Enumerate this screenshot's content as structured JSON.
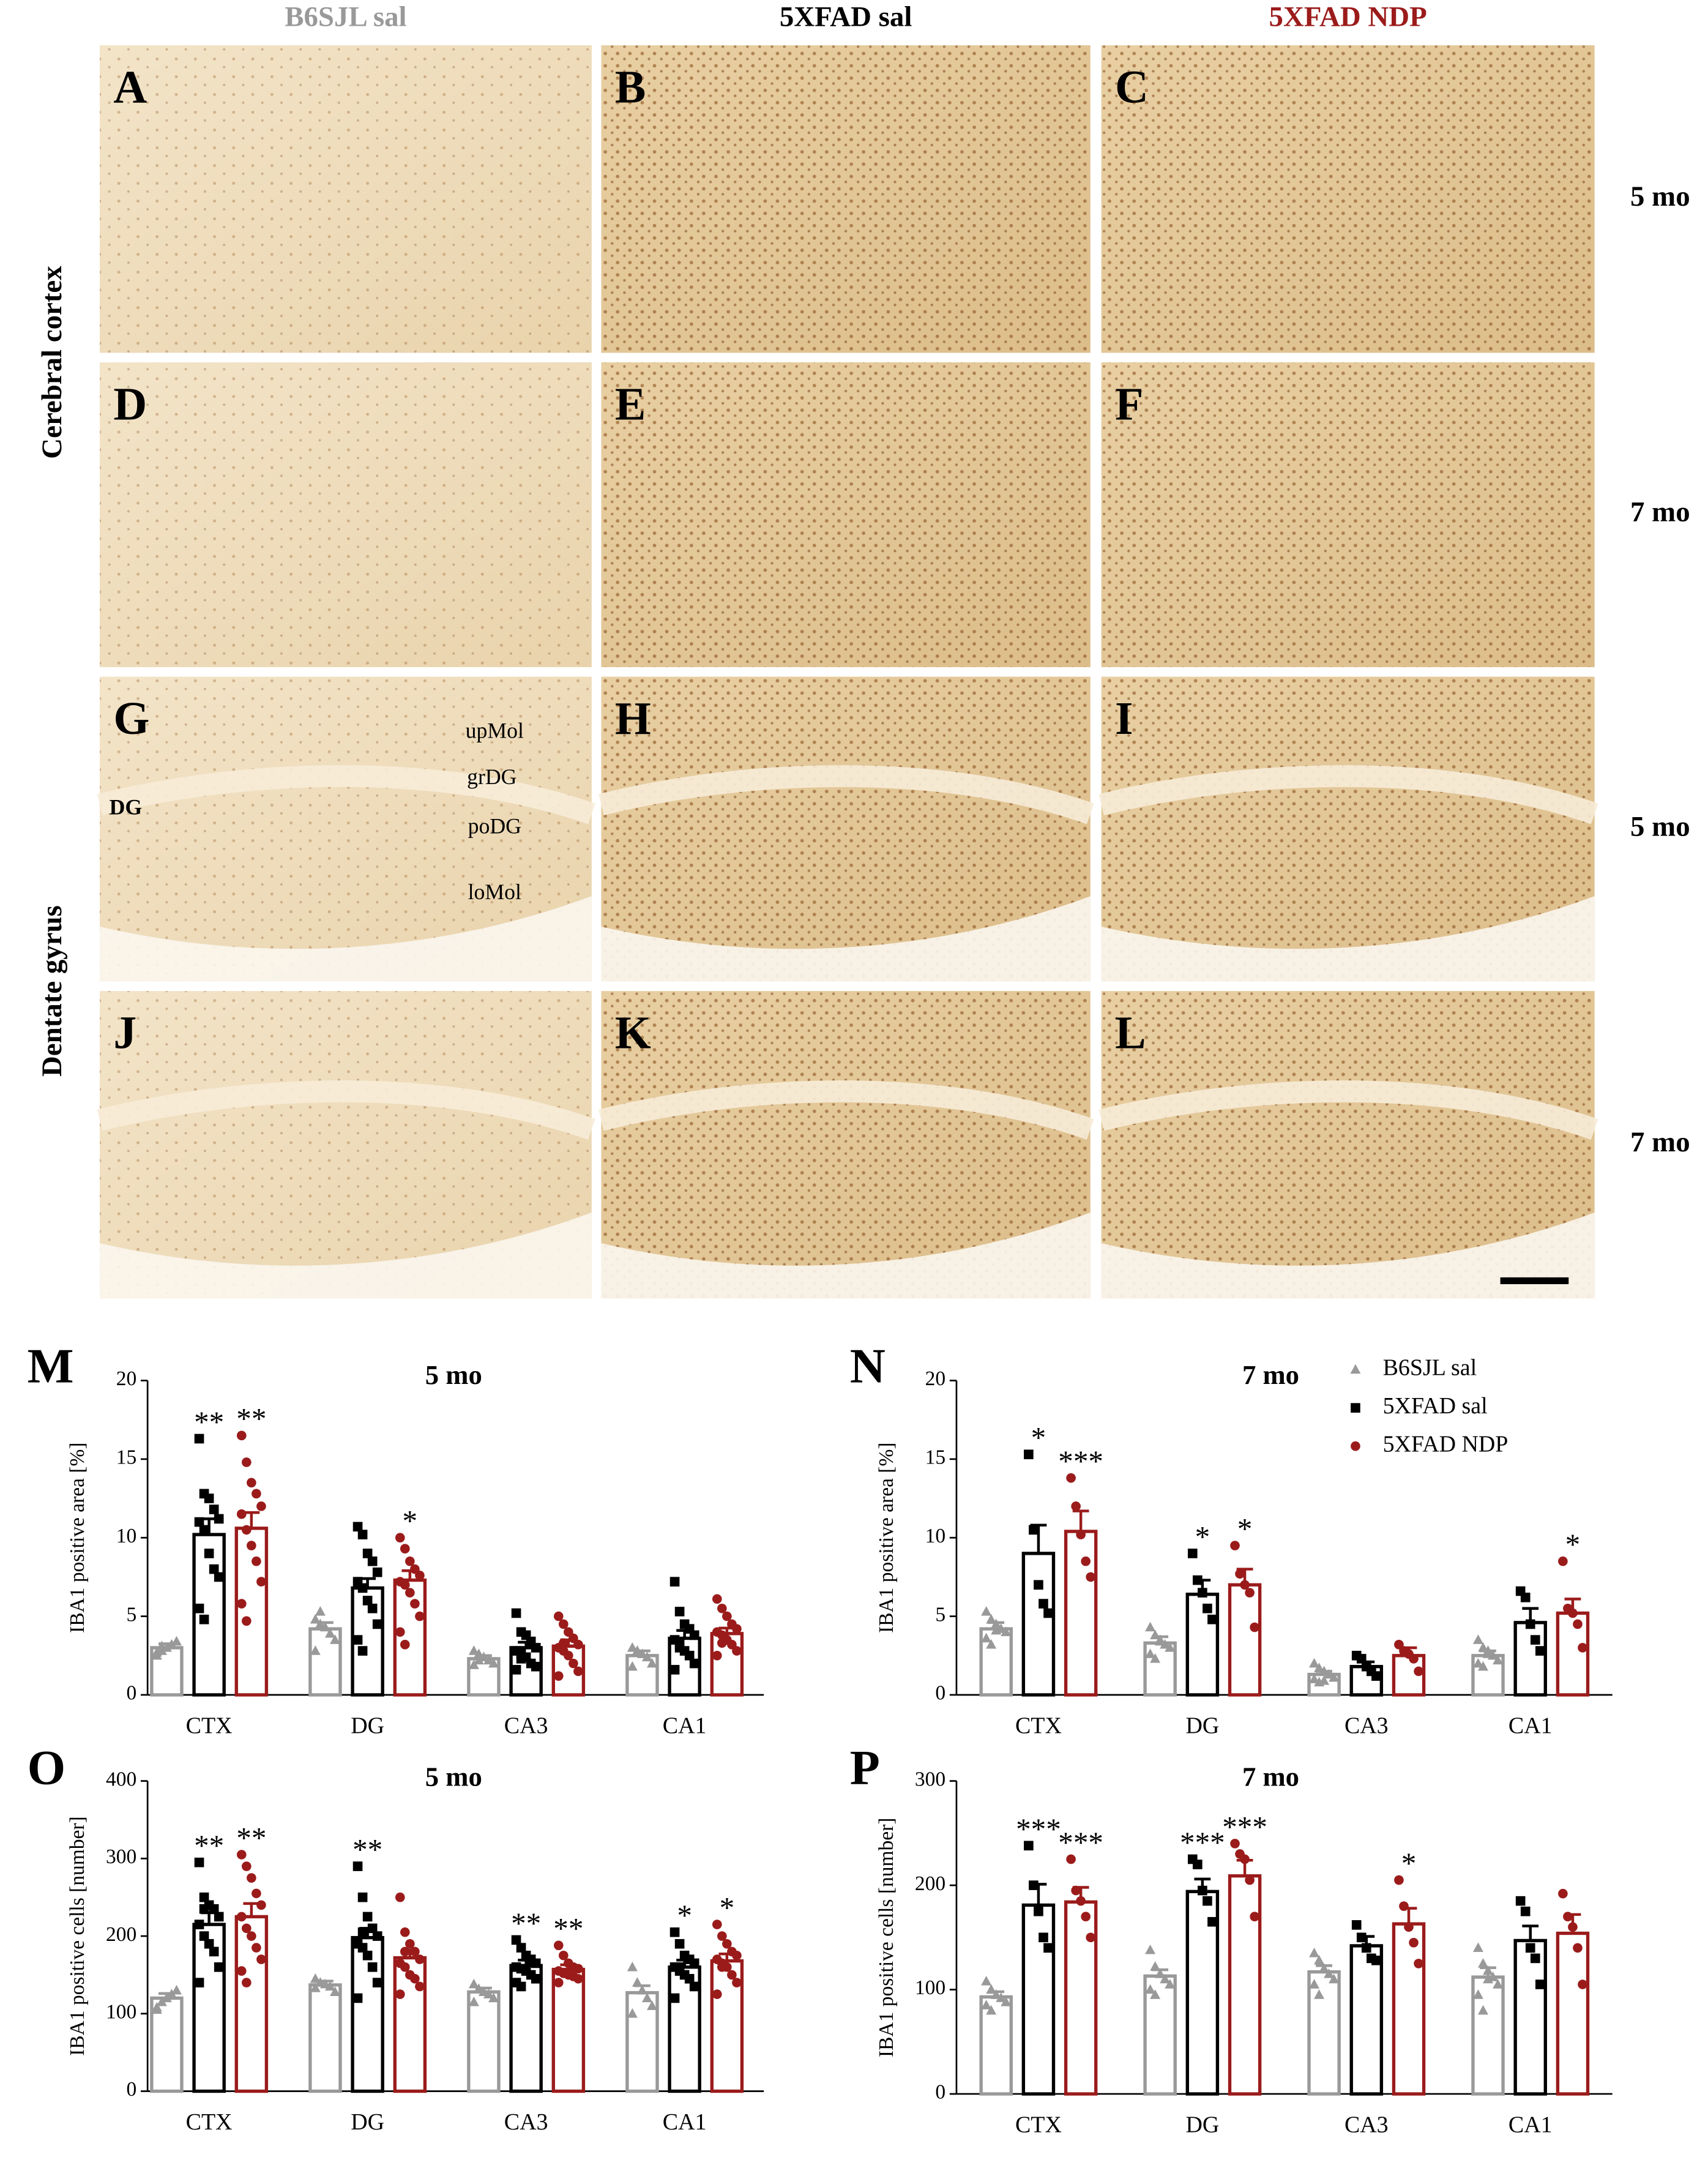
{
  "figure": {
    "columns": [
      "B6SJL sal",
      "5XFAD sal",
      "5XFAD NDP"
    ],
    "column_colors": [
      "#999999",
      "#000000",
      "#9b1b1b"
    ],
    "rows": [
      "5 mo",
      "7 mo",
      "5 mo",
      "7 mo"
    ],
    "regions": [
      "Cerebral cortex",
      "Dentate gyrus"
    ],
    "panels": [
      "A",
      "B",
      "C",
      "D",
      "E",
      "F",
      "G",
      "H",
      "I",
      "J",
      "K",
      "L"
    ],
    "layer_labels": [
      "upMol",
      "grDG",
      "poDG",
      "loMol"
    ],
    "region_label": "DG"
  },
  "chart_data": [
    {
      "type": "bar",
      "panel": "M",
      "title": "5 mo",
      "ylabel": "IBA1 positive area [%]",
      "categories": [
        "CTX",
        "DG",
        "CA3",
        "CA1"
      ],
      "ylim": [
        0,
        20
      ],
      "yticks": [
        0,
        5,
        10,
        15,
        20
      ],
      "legend": false,
      "series": [
        {
          "color": "#999999",
          "marker": "triangle",
          "values": [
            3.0,
            4.2,
            2.3,
            2.5
          ],
          "errors": [
            0.25,
            0.4,
            0.2,
            0.3
          ],
          "points": [
            [
              2.5,
              2.8,
              3.0,
              3.2,
              3.4,
              2.7,
              3.1
            ],
            [
              4.8,
              4.5,
              4.3,
              3.9,
              3.5,
              2.8,
              5.3
            ],
            [
              2.8,
              2.6,
              2.4,
              2.2,
              2.0,
              1.9,
              2.2
            ],
            [
              3.0,
              2.8,
              2.6,
              2.4,
              2.0,
              1.8,
              2.8
            ]
          ],
          "stars": [
            null,
            null,
            null,
            null
          ]
        },
        {
          "color": "#000000",
          "marker": "square",
          "values": [
            10.2,
            6.8,
            3.0,
            3.6
          ],
          "errors": [
            1.0,
            0.6,
            0.35,
            0.5
          ],
          "points": [
            [
              16.3,
              12.8,
              12.5,
              11.8,
              11.2,
              11.0,
              10.5,
              9.0,
              8.0,
              7.5,
              5.5,
              4.8
            ],
            [
              10.7,
              10.2,
              9.0,
              8.5,
              7.8,
              7.2,
              6.8,
              6.0,
              5.5,
              4.5,
              3.5,
              2.8
            ],
            [
              5.2,
              4.0,
              3.8,
              3.4,
              3.0,
              2.8,
              2.6,
              2.4,
              2.0,
              1.8,
              1.6,
              2.3
            ],
            [
              7.2,
              5.3,
              4.5,
              4.2,
              3.8,
              3.5,
              3.2,
              2.8,
              2.5,
              2.0,
              1.6,
              3.0
            ]
          ],
          "stars": [
            "**",
            null,
            null,
            null
          ]
        },
        {
          "color": "#9b1b1b",
          "marker": "circle",
          "values": [
            10.6,
            7.3,
            3.1,
            3.9
          ],
          "errors": [
            1.0,
            0.6,
            0.4,
            0.35
          ],
          "points": [
            [
              16.5,
              14.8,
              13.5,
              12.8,
              12.0,
              11.5,
              10.5,
              9.5,
              8.5,
              7.2,
              5.8,
              4.7
            ],
            [
              10.0,
              9.3,
              8.5,
              8.0,
              7.6,
              7.2,
              7.0,
              6.5,
              5.8,
              5.0,
              4.0,
              3.2
            ],
            [
              5.0,
              4.5,
              4.0,
              3.6,
              3.2,
              3.0,
              2.8,
              2.5,
              2.0,
              1.5,
              1.2,
              3.3
            ],
            [
              6.1,
              5.5,
              5.0,
              4.5,
              4.2,
              4.0,
              3.8,
              3.5,
              3.2,
              2.8,
              2.5,
              3.3
            ]
          ],
          "stars": [
            "**",
            "*",
            null,
            null
          ]
        }
      ]
    },
    {
      "type": "bar",
      "panel": "N",
      "title": "7 mo",
      "ylabel": "IBA1 positive area [%]",
      "categories": [
        "CTX",
        "DG",
        "CA3",
        "CA1"
      ],
      "ylim": [
        0,
        20
      ],
      "yticks": [
        0,
        5,
        10,
        15,
        20
      ],
      "legend": true,
      "series": [
        {
          "name": "B6SJL sal",
          "color": "#999999",
          "marker": "triangle",
          "values": [
            4.2,
            3.3,
            1.3,
            2.5
          ],
          "errors": [
            0.4,
            0.4,
            0.2,
            0.3
          ],
          "points": [
            [
              5.3,
              4.8,
              4.5,
              4.2,
              4.0,
              3.6,
              3.2,
              4.1
            ],
            [
              4.3,
              3.8,
              3.5,
              3.2,
              3.0,
              2.6,
              2.3,
              3.4
            ],
            [
              2.0,
              1.7,
              1.5,
              1.3,
              1.1,
              1.0,
              0.8,
              0.9
            ],
            [
              3.5,
              3.0,
              2.8,
              2.5,
              2.2,
              2.0,
              1.8,
              2.6
            ]
          ],
          "stars": [
            null,
            null,
            null,
            null
          ]
        },
        {
          "name": "5XFAD sal",
          "color": "#000000",
          "marker": "square",
          "values": [
            9.0,
            6.4,
            1.8,
            4.6
          ],
          "errors": [
            1.8,
            0.9,
            0.3,
            0.9
          ],
          "points": [
            [
              15.3,
              10.5,
              7.0,
              5.8,
              5.2
            ],
            [
              9.0,
              7.3,
              6.5,
              5.5,
              4.8
            ],
            [
              2.5,
              2.3,
              1.8,
              1.5,
              1.2
            ],
            [
              6.6,
              6.2,
              4.5,
              3.5,
              2.8
            ]
          ],
          "stars": [
            "*",
            "*",
            null,
            null
          ]
        },
        {
          "name": "5XFAD NDP",
          "color": "#9b1b1b",
          "marker": "circle",
          "values": [
            10.4,
            7.0,
            2.5,
            5.2
          ],
          "errors": [
            1.3,
            1.0,
            0.5,
            0.9
          ],
          "points": [
            [
              13.8,
              12.0,
              10.2,
              8.5,
              7.5
            ],
            [
              9.5,
              7.7,
              7.0,
              6.5,
              4.3
            ],
            [
              3.2,
              2.8,
              2.6,
              2.3,
              1.5
            ],
            [
              8.5,
              5.5,
              5.2,
              4.5,
              3.0
            ]
          ],
          "stars": [
            "***",
            "*",
            null,
            "*"
          ]
        }
      ]
    },
    {
      "type": "bar",
      "panel": "O",
      "title": "5 mo",
      "ylabel": "IBA1 positive cells [number]",
      "categories": [
        "CTX",
        "DG",
        "CA3",
        "CA1"
      ],
      "ylim": [
        0,
        400
      ],
      "yticks": [
        0,
        100,
        200,
        300,
        400
      ],
      "legend": false,
      "series": [
        {
          "color": "#999999",
          "marker": "triangle",
          "values": [
            120,
            137,
            128,
            127
          ],
          "errors": [
            6,
            5,
            5,
            9
          ],
          "points": [
            [
              108,
              115,
              120,
              125,
              130,
              105
            ],
            [
              145,
              140,
              138,
              135,
              128,
              133
            ],
            [
              138,
              132,
              128,
              125,
              120,
              115
            ],
            [
              160,
              140,
              130,
              120,
              110,
              100
            ]
          ],
          "stars": [
            null,
            null,
            null,
            null
          ]
        },
        {
          "color": "#000000",
          "marker": "square",
          "values": [
            215,
            198,
            162,
            160
          ],
          "errors": [
            15,
            12,
            7,
            9
          ],
          "points": [
            [
              295,
              250,
              240,
              235,
              225,
              215,
              200,
              190,
              180,
              160,
              140,
              235
            ],
            [
              290,
              250,
              225,
              210,
              200,
              190,
              185,
              175,
              160,
              140,
              120,
              205
            ],
            [
              195,
              185,
              175,
              170,
              165,
              160,
              158,
              155,
              150,
              145,
              140,
              135
            ],
            [
              205,
              190,
              175,
              170,
              165,
              160,
              155,
              150,
              145,
              135,
              120,
              160
            ]
          ],
          "stars": [
            "**",
            "**",
            "**",
            "*"
          ]
        },
        {
          "color": "#9b1b1b",
          "marker": "circle",
          "values": [
            225,
            172,
            157,
            168
          ],
          "errors": [
            17,
            10,
            6,
            9
          ],
          "points": [
            [
              305,
              290,
              275,
              255,
              240,
              225,
              210,
              200,
              185,
              170,
              155,
              140
            ],
            [
              250,
              205,
              190,
              180,
              170,
              165,
              160,
              150,
              145,
              135,
              125,
              180
            ],
            [
              188,
              175,
              165,
              160,
              158,
              155,
              152,
              150,
              148,
              145,
              140,
              153
            ],
            [
              215,
              200,
              190,
              180,
              175,
              170,
              165,
              160,
              150,
              140,
              125,
              160
            ]
          ],
          "stars": [
            "**",
            null,
            "**",
            "*"
          ]
        }
      ]
    },
    {
      "type": "bar",
      "panel": "P",
      "title": "7 mo",
      "ylabel": "IBA1 positive cells [number]",
      "categories": [
        "CTX",
        "DG",
        "CA3",
        "CA1"
      ],
      "ylim": [
        0,
        300
      ],
      "yticks": [
        0,
        100,
        200,
        300
      ],
      "legend": false,
      "series": [
        {
          "color": "#999999",
          "marker": "triangle",
          "values": [
            93,
            113,
            117,
            112
          ],
          "errors": [
            5,
            6,
            6,
            9
          ],
          "points": [
            [
              108,
              100,
              95,
              92,
              88,
              85,
              80,
              95
            ],
            [
              138,
              122,
              115,
              110,
              105,
              100,
              95,
              115
            ],
            [
              135,
              128,
              120,
              115,
              110,
              105,
              95,
              120
            ],
            [
              140,
              125,
              118,
              112,
              105,
              95,
              80,
              110
            ]
          ],
          "stars": [
            null,
            null,
            null,
            null
          ]
        },
        {
          "color": "#000000",
          "marker": "square",
          "values": [
            181,
            194,
            142,
            147
          ],
          "errors": [
            20,
            12,
            9,
            14
          ],
          "points": [
            [
              238,
              200,
              175,
              150,
              140
            ],
            [
              225,
              220,
              195,
              185,
              165
            ],
            [
              162,
              150,
              140,
              130,
              128
            ],
            [
              185,
              175,
              140,
              130,
              105
            ]
          ],
          "stars": [
            "***",
            "***",
            null,
            null
          ]
        },
        {
          "color": "#9b1b1b",
          "marker": "circle",
          "values": [
            184,
            209,
            163,
            154
          ],
          "errors": [
            14,
            15,
            15,
            18
          ],
          "points": [
            [
              225,
              195,
              185,
              170,
              150
            ],
            [
              240,
              230,
              225,
              205,
              170
            ],
            [
              205,
              180,
              160,
              145,
              125
            ],
            [
              192,
              170,
              160,
              140,
              105
            ]
          ],
          "stars": [
            "***",
            "***",
            "*",
            null
          ]
        }
      ]
    }
  ]
}
